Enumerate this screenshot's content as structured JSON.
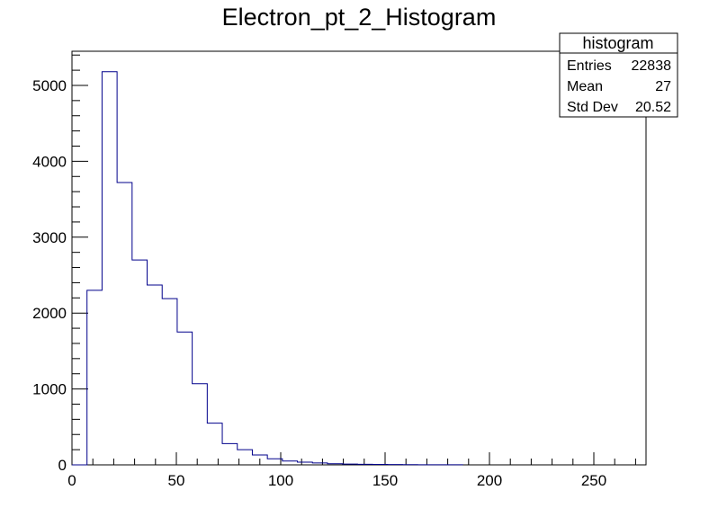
{
  "chart_data": {
    "type": "histogram",
    "title": "Electron_pt_2_Histogram",
    "xlabel": "",
    "ylabel": "",
    "xlim": [
      0,
      275
    ],
    "ylim": [
      0,
      5450
    ],
    "bin_width": 7.2,
    "bin_start": 0,
    "x_ticks": [
      0,
      50,
      100,
      150,
      200,
      250
    ],
    "y_ticks": [
      0,
      1000,
      2000,
      3000,
      4000,
      5000
    ],
    "bins": [
      {
        "x": 0.0,
        "value": 0
      },
      {
        "x": 7.2,
        "value": 2300
      },
      {
        "x": 14.4,
        "value": 5180
      },
      {
        "x": 21.6,
        "value": 3720
      },
      {
        "x": 28.8,
        "value": 2700
      },
      {
        "x": 36.0,
        "value": 2370
      },
      {
        "x": 43.2,
        "value": 2190
      },
      {
        "x": 50.4,
        "value": 1750
      },
      {
        "x": 57.6,
        "value": 1070
      },
      {
        "x": 64.8,
        "value": 550
      },
      {
        "x": 72.0,
        "value": 280
      },
      {
        "x": 79.2,
        "value": 200
      },
      {
        "x": 86.4,
        "value": 130
      },
      {
        "x": 93.6,
        "value": 80
      },
      {
        "x": 100.8,
        "value": 50
      },
      {
        "x": 108.0,
        "value": 35
      },
      {
        "x": 115.2,
        "value": 25
      },
      {
        "x": 122.4,
        "value": 15
      },
      {
        "x": 129.6,
        "value": 10
      },
      {
        "x": 136.8,
        "value": 8
      },
      {
        "x": 144.0,
        "value": 6
      },
      {
        "x": 151.2,
        "value": 4
      },
      {
        "x": 158.4,
        "value": 3
      },
      {
        "x": 165.6,
        "value": 2
      },
      {
        "x": 172.8,
        "value": 2
      },
      {
        "x": 180.0,
        "value": 1
      }
    ],
    "line_color": "#00008b",
    "grid": false,
    "legend": "none"
  },
  "stats_box": {
    "title": "histogram",
    "rows": [
      {
        "label": "Entries",
        "value": "22838"
      },
      {
        "label": "Mean",
        "value": "27"
      },
      {
        "label": "Std Dev",
        "value": "20.52"
      }
    ]
  }
}
